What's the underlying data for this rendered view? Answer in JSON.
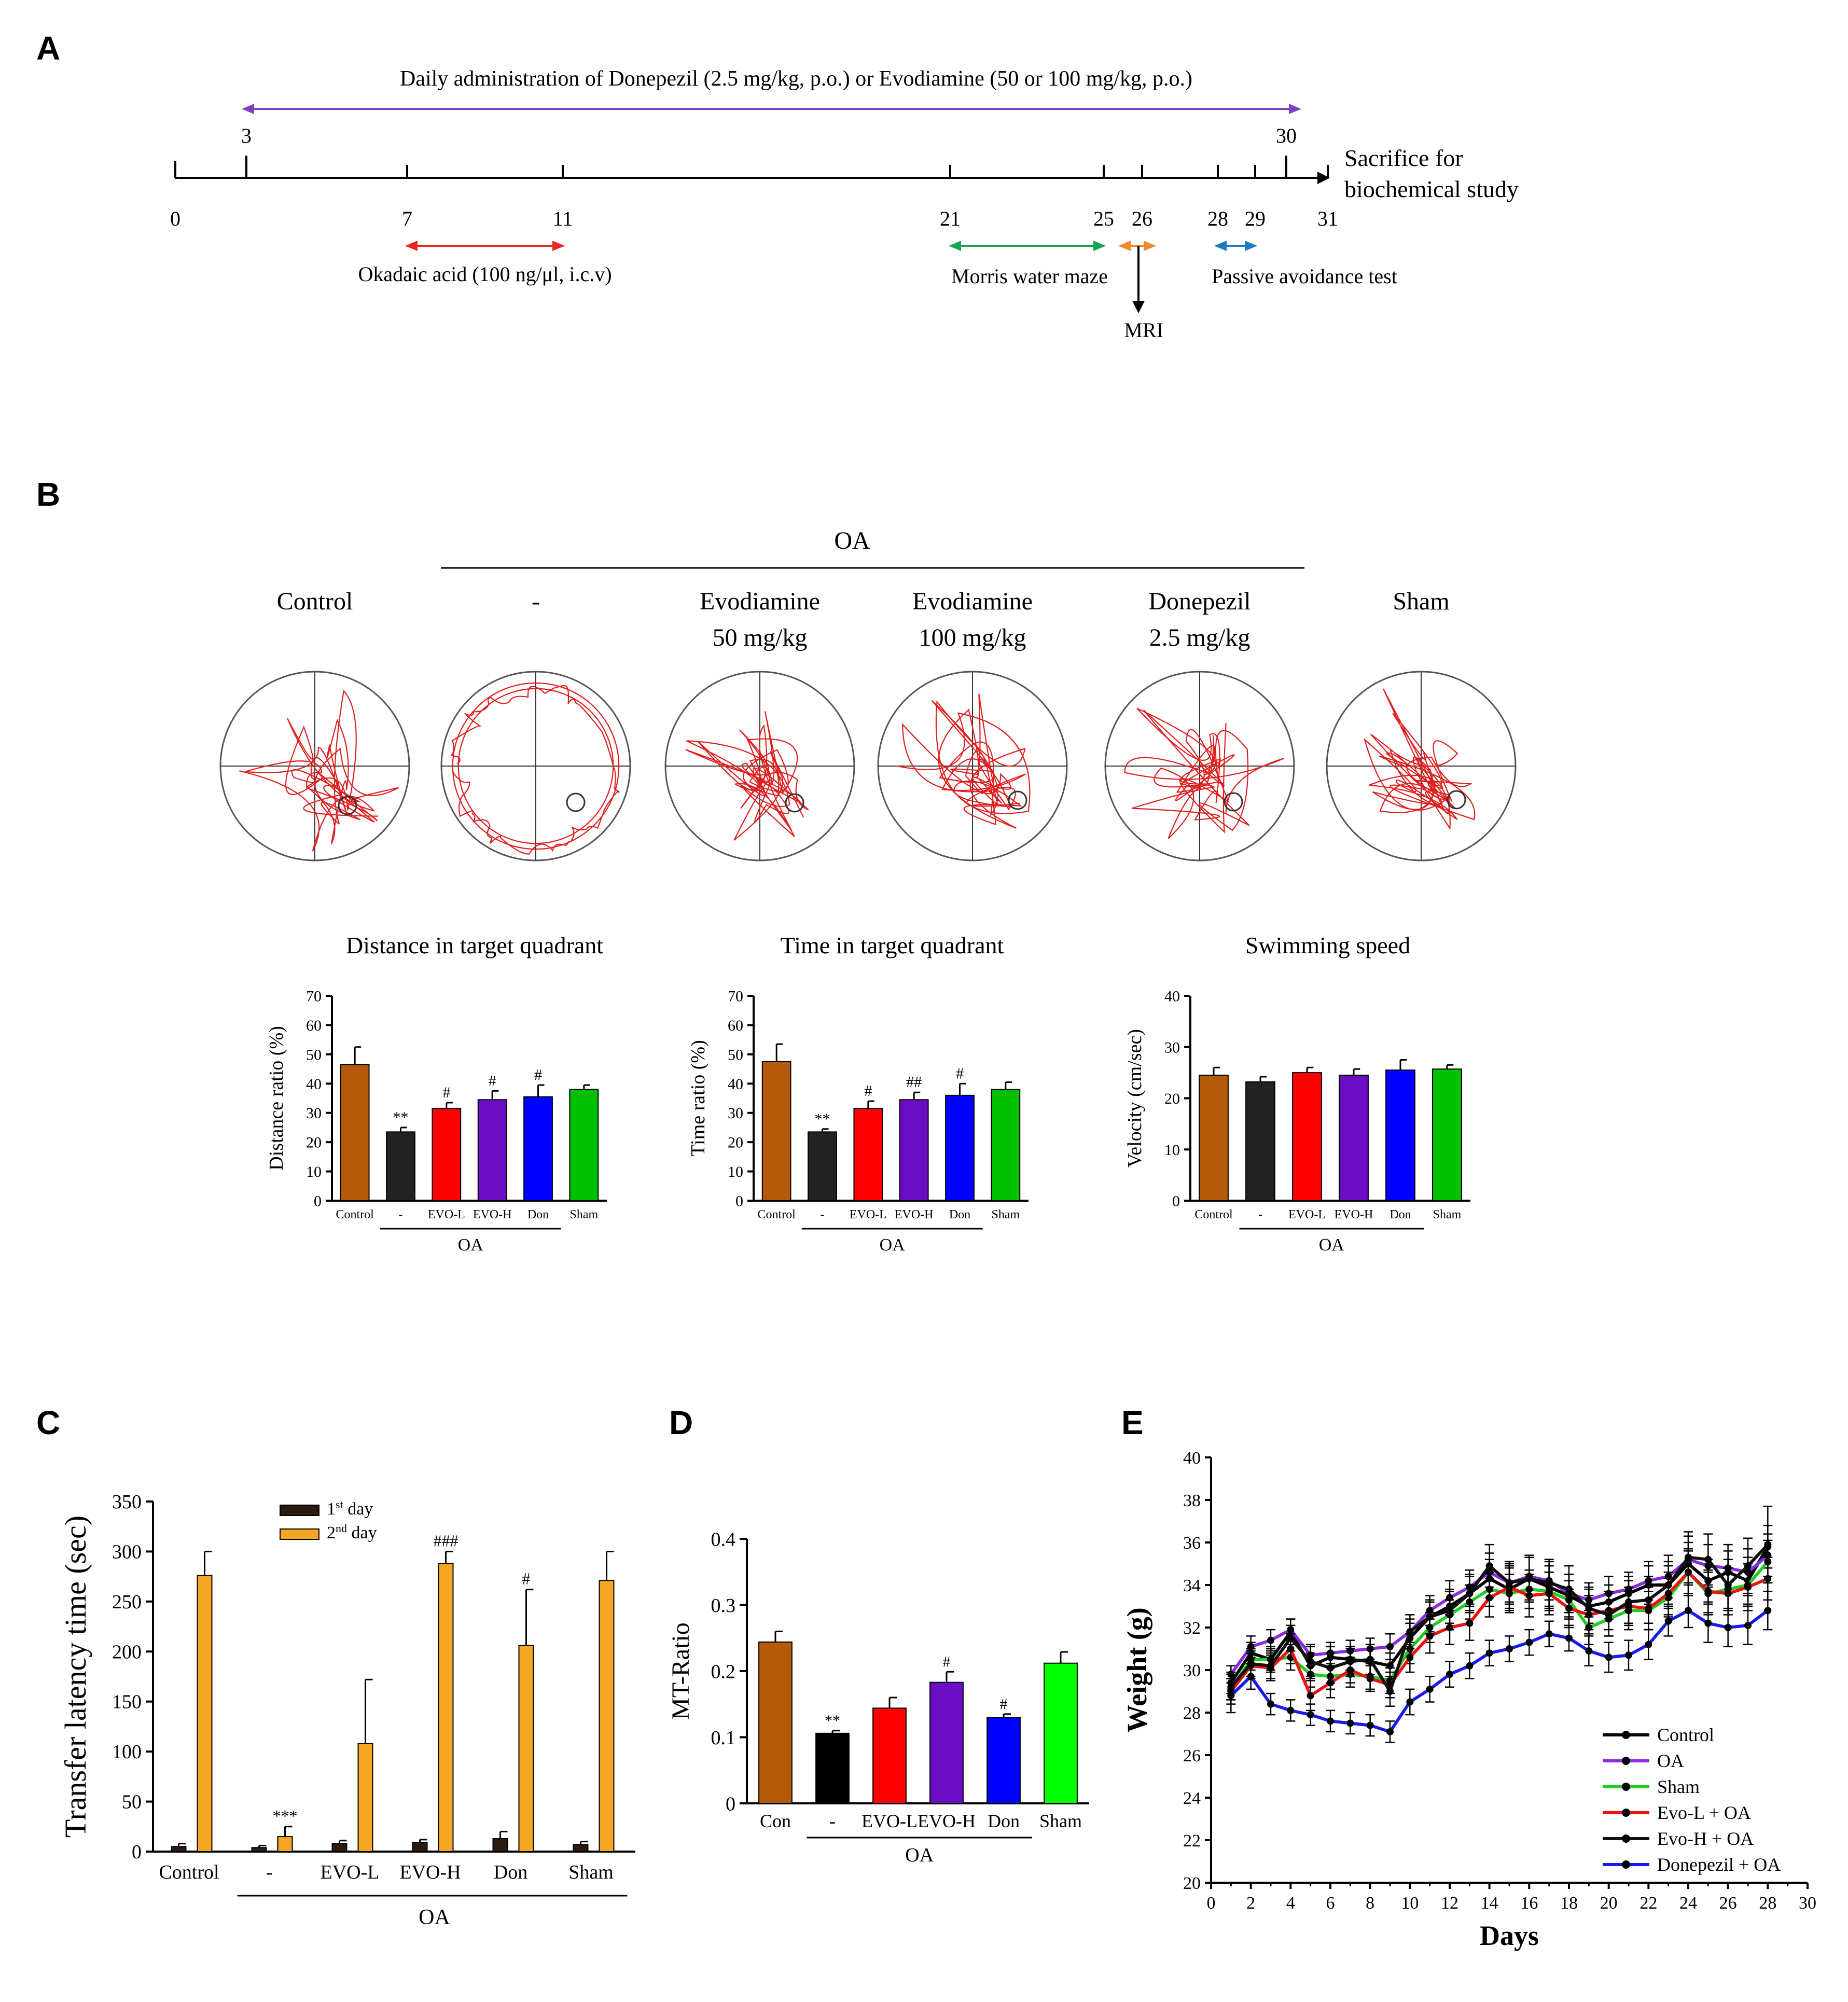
{
  "panels": {
    "a": "A",
    "b": "B",
    "c": "C",
    "d": "D",
    "e": "E"
  },
  "timeline": {
    "admin_text": "Daily administration of Donepezil (2.5 mg/kg, p.o.) or Evodiamine (50 or 100 mg/kg, p.o.)",
    "admin_start": "3",
    "admin_end": "30",
    "days": [
      "0",
      "7",
      "11",
      "21",
      "25",
      "26",
      "28",
      "29",
      "31"
    ],
    "okadaic": "Okadaic acid (100 ng/μl, i.c.v)",
    "morris": "Morris water maze",
    "passive": "Passive avoidance test",
    "mri": "MRI",
    "sacrifice_1": "Sacrifice for",
    "sacrifice_2": "biochemical study",
    "colors": {
      "admin": "#7e3fc4",
      "oa": "#e8281e",
      "mwm": "#1aa356",
      "mri": "#f08a2a",
      "pa": "#1f7bbd"
    }
  },
  "maze": {
    "oa_label": "OA",
    "groups": [
      {
        "line1": "Control",
        "line2": ""
      },
      {
        "line1": "-",
        "line2": ""
      },
      {
        "line1": "Evodiamine",
        "line2": "50 mg/kg"
      },
      {
        "line1": "Evodiamine",
        "line2": "100 mg/kg"
      },
      {
        "line1": "Donepezil",
        "line2": "2.5 mg/kg"
      },
      {
        "line1": "Sham",
        "line2": ""
      }
    ]
  },
  "chart_data": [
    {
      "id": "distance",
      "type": "bar",
      "title": "Distance in target quadrant",
      "ylabel": "Distance ratio (%)",
      "ylim": [
        0,
        70
      ],
      "yticks": [
        0,
        10,
        20,
        30,
        40,
        50,
        60,
        70
      ],
      "categories": [
        "Control",
        "-",
        "EVO-L",
        "EVO-H",
        "Don",
        "Sham"
      ],
      "values": [
        46.5,
        23.5,
        31.5,
        34.5,
        35.5,
        38
      ],
      "errors": [
        6,
        1.5,
        2,
        3,
        4,
        1.5
      ],
      "sig": [
        "",
        "**",
        "#",
        "#",
        "#",
        ""
      ],
      "colors": [
        "#b55a0a",
        "#222222",
        "#ff0000",
        "#6a0dc4",
        "#0000ff",
        "#00c000"
      ],
      "group_label": "OA"
    },
    {
      "id": "time",
      "type": "bar",
      "title": "Time in target quadrant",
      "ylabel": "Time ratio (%)",
      "ylim": [
        0,
        70
      ],
      "yticks": [
        0,
        10,
        20,
        30,
        40,
        50,
        60,
        70
      ],
      "categories": [
        "Control",
        "-",
        "EVO-L",
        "EVO-H",
        "Don",
        "Sham"
      ],
      "values": [
        47.5,
        23.5,
        31.5,
        34.5,
        36,
        38
      ],
      "errors": [
        6,
        1,
        2.5,
        2.5,
        4,
        2.5
      ],
      "sig": [
        "",
        "**",
        "#",
        "##",
        "#",
        ""
      ],
      "colors": [
        "#b55a0a",
        "#222222",
        "#ff0000",
        "#6a0dc4",
        "#0000ff",
        "#00c000"
      ],
      "group_label": "OA"
    },
    {
      "id": "speed",
      "type": "bar",
      "title": "Swimming speed",
      "ylabel": "Velocity (cm/sec)",
      "ylim": [
        0,
        40
      ],
      "yticks": [
        0,
        10,
        20,
        30,
        40
      ],
      "categories": [
        "Control",
        "-",
        "EVO-L",
        "EVO-H",
        "Don",
        "Sham"
      ],
      "values": [
        24.5,
        23.2,
        25,
        24.5,
        25.5,
        25.7
      ],
      "errors": [
        1.5,
        1,
        1,
        1.2,
        2,
        0.8
      ],
      "sig": [
        "",
        "",
        "",
        "",
        "",
        ""
      ],
      "colors": [
        "#b55a0a",
        "#222222",
        "#ff0000",
        "#6a0dc4",
        "#0000ff",
        "#00c000"
      ],
      "group_label": "OA"
    },
    {
      "id": "transfer",
      "type": "bar",
      "ylabel": "Transfer latency time (sec)",
      "ylim": [
        0,
        350
      ],
      "yticks": [
        0,
        50,
        100,
        150,
        200,
        250,
        300,
        350
      ],
      "categories": [
        "Control",
        "-",
        "EVO-L",
        "EVO-H",
        "Don",
        "Sham"
      ],
      "series": [
        {
          "name": "1st day",
          "values": [
            5,
            4,
            8,
            9,
            13,
            7
          ],
          "errors": [
            3,
            2,
            3,
            3,
            7,
            3
          ],
          "color": "#2a1a10"
        },
        {
          "name": "2nd day",
          "values": [
            276,
            15,
            108,
            288,
            206,
            271
          ],
          "errors": [
            24,
            10,
            64,
            12,
            56,
            29
          ],
          "color": "#f5a623"
        }
      ],
      "legend": [
        {
          "main": "1",
          "sup": "st",
          "rest": " day"
        },
        {
          "main": "2",
          "sup": "nd",
          "rest": " day"
        }
      ],
      "sig": [
        "",
        "***",
        "",
        "###",
        "#",
        ""
      ],
      "group_label": "OA"
    },
    {
      "id": "mt",
      "type": "bar",
      "ylabel": "MT-Ratio",
      "ylim": [
        0,
        0.4
      ],
      "yticks": [
        "0",
        "0.1",
        "0.2",
        "0.3",
        "0.4"
      ],
      "categories": [
        "Con",
        "-",
        "EVO-L",
        "EVO-H",
        "Don",
        "Sham"
      ],
      "values": [
        0.244,
        0.106,
        0.144,
        0.183,
        0.13,
        0.212
      ],
      "errors": [
        0.016,
        0.004,
        0.016,
        0.016,
        0.005,
        0.017
      ],
      "sig": [
        "",
        "**",
        "",
        "#",
        "#",
        ""
      ],
      "colors": [
        "#b55a0a",
        "#000000",
        "#ff0000",
        "#6a0dc4",
        "#0000ff",
        "#00ff00"
      ],
      "group_label": "OA"
    },
    {
      "id": "weight",
      "type": "line",
      "xlabel": "Days",
      "ylabel": "Weight (g)",
      "xlim": [
        0,
        30
      ],
      "ylim": [
        20,
        40
      ],
      "xticks": [
        0,
        2,
        4,
        6,
        8,
        10,
        12,
        14,
        16,
        18,
        20,
        22,
        24,
        26,
        28,
        30
      ],
      "yticks": [
        20,
        22,
        24,
        26,
        28,
        30,
        32,
        34,
        36,
        38,
        40
      ],
      "x": [
        1,
        2,
        3,
        4,
        5,
        6,
        7,
        8,
        9,
        10,
        11,
        12,
        13,
        14,
        15,
        16,
        17,
        18,
        19,
        20,
        21,
        22,
        23,
        24,
        25,
        26,
        27,
        28
      ],
      "series": [
        {
          "name": "Control",
          "color": "#000000",
          "values": [
            29.4,
            30.8,
            30.5,
            31.8,
            30.2,
            30.6,
            30.5,
            30.4,
            30.2,
            31.5,
            32.5,
            33.0,
            33.6,
            34.3,
            33.8,
            34.3,
            33.9,
            33.5,
            33.0,
            33.2,
            33.6,
            34.0,
            34.0,
            35.0,
            34.2,
            34.6,
            34.2,
            35.8
          ],
          "errors": [
            0.5,
            0.5,
            0.6,
            0.6,
            0.6,
            0.5,
            0.5,
            0.6,
            0.6,
            0.7,
            0.7,
            0.8,
            0.8,
            0.9,
            1.0,
            1.0,
            1.0,
            1.0,
            0.8,
            0.8,
            0.8,
            0.9,
            0.9,
            1.0,
            1.0,
            1.0,
            1.1,
            1.0
          ]
        },
        {
          "name": "OA",
          "color": "#8a2be2",
          "values": [
            29.8,
            31.1,
            31.4,
            31.9,
            30.7,
            30.8,
            30.9,
            31.0,
            31.1,
            31.8,
            32.8,
            33.4,
            33.9,
            34.6,
            34.1,
            34.4,
            34.2,
            33.6,
            33.3,
            33.6,
            33.8,
            34.2,
            34.4,
            35.2,
            34.9,
            34.8,
            34.6,
            35.4
          ],
          "errors": [
            0.4,
            0.5,
            0.5,
            0.5,
            0.5,
            0.5,
            0.5,
            0.5,
            0.6,
            0.6,
            0.7,
            0.8,
            0.8,
            0.9,
            0.9,
            0.9,
            0.9,
            0.9,
            0.8,
            0.8,
            0.8,
            0.9,
            1.0,
            1.1,
            1.0,
            1.1,
            1.1,
            1.0
          ]
        },
        {
          "name": "Sham",
          "color": "#22cc22",
          "values": [
            29.1,
            30.5,
            30.5,
            30.6,
            29.8,
            29.7,
            29.8,
            29.7,
            29.5,
            31.0,
            32.0,
            32.6,
            33.2,
            33.8,
            33.6,
            33.8,
            33.7,
            33.3,
            32.0,
            32.4,
            32.8,
            32.8,
            33.4,
            34.6,
            33.6,
            33.8,
            34.0,
            35.1
          ],
          "errors": [
            0.5,
            0.5,
            0.5,
            0.6,
            0.6,
            0.6,
            0.6,
            0.6,
            0.6,
            0.7,
            0.7,
            0.7,
            0.8,
            0.8,
            0.9,
            0.9,
            0.9,
            0.9,
            0.8,
            0.8,
            0.9,
            0.9,
            0.9,
            1.0,
            1.0,
            1.0,
            1.0,
            1.0
          ]
        },
        {
          "name": "Evo-L + OA",
          "color": "#ee1111",
          "values": [
            29.0,
            30.2,
            30.1,
            31.0,
            28.8,
            29.4,
            30.0,
            29.6,
            29.3,
            30.6,
            31.6,
            32.0,
            32.2,
            33.4,
            33.9,
            33.5,
            33.6,
            32.9,
            32.6,
            32.8,
            33.0,
            32.9,
            33.6,
            34.6,
            33.7,
            33.6,
            33.9,
            34.3
          ],
          "errors": [
            0.6,
            0.6,
            0.6,
            0.7,
            0.7,
            0.7,
            0.6,
            0.6,
            0.6,
            0.7,
            0.8,
            0.8,
            0.8,
            0.9,
            1.0,
            1.0,
            1.0,
            0.9,
            0.9,
            0.9,
            0.9,
            1.0,
            1.0,
            1.1,
            1.0,
            1.0,
            1.1,
            1.0
          ]
        },
        {
          "name": "Evo-H + OA",
          "color": "#111111",
          "values": [
            29.2,
            30.3,
            30.2,
            31.5,
            30.4,
            30.1,
            30.4,
            30.5,
            29.0,
            31.8,
            32.5,
            32.8,
            33.6,
            34.9,
            34.1,
            34.3,
            34.1,
            33.8,
            32.9,
            32.6,
            33.2,
            33.3,
            34.0,
            35.3,
            35.2,
            34.0,
            34.9,
            35.9
          ],
          "errors": [
            0.6,
            0.6,
            0.6,
            0.6,
            0.7,
            0.7,
            0.7,
            0.7,
            0.7,
            0.8,
            0.8,
            0.9,
            0.9,
            1.0,
            1.0,
            1.1,
            1.1,
            1.1,
            1.0,
            1.0,
            1.0,
            1.1,
            1.1,
            1.2,
            1.2,
            1.2,
            1.3,
            1.8
          ]
        },
        {
          "name": "Donepezil + OA",
          "color": "#1a1aee",
          "values": [
            28.8,
            29.7,
            28.4,
            28.1,
            27.9,
            27.6,
            27.5,
            27.4,
            27.1,
            28.5,
            29.1,
            29.8,
            30.2,
            30.8,
            31.0,
            31.3,
            31.7,
            31.5,
            30.9,
            30.6,
            30.7,
            31.2,
            32.3,
            32.8,
            32.2,
            32.0,
            32.1,
            32.8
          ],
          "errors": [
            0.8,
            0.6,
            0.5,
            0.5,
            0.5,
            0.5,
            0.5,
            0.5,
            0.5,
            0.6,
            0.6,
            0.6,
            0.6,
            0.6,
            0.6,
            0.6,
            0.6,
            0.6,
            0.7,
            0.7,
            0.7,
            0.7,
            0.7,
            0.8,
            0.9,
            0.9,
            0.9,
            0.9
          ]
        }
      ]
    }
  ]
}
